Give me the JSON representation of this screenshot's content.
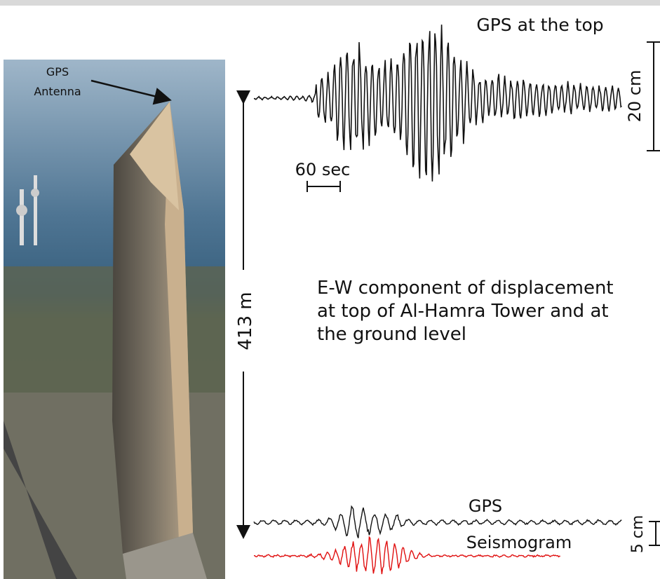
{
  "photo": {
    "label_lines": [
      "GPS",
      "Antenna"
    ]
  },
  "top_trace": {
    "title": "GPS at the top",
    "scale_y": "20 cm",
    "scale_x": "60 sec"
  },
  "height_label": "413 m",
  "caption_lines": [
    "E-W component of displacement",
    "at top of Al-Hamra Tower and at",
    "the ground level"
  ],
  "bottom_traces": {
    "gps": "GPS",
    "seismogram": "Seismogram",
    "scale_y": "5 cm"
  }
}
